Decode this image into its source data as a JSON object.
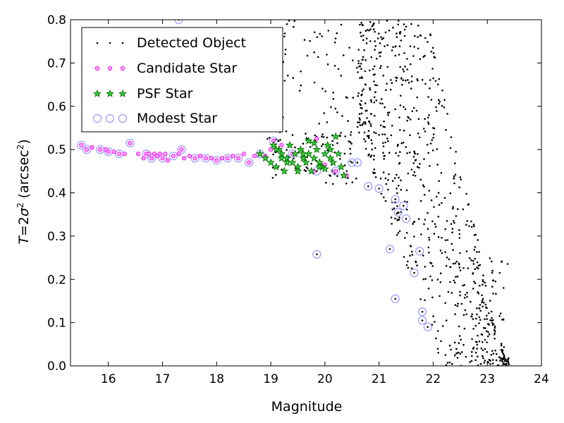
{
  "chart_data": {
    "type": "scatter",
    "title": "",
    "xlabel": "Magnitude",
    "ylabel_parts": {
      "var": "T",
      "eq": "=",
      "two": "2",
      "sigma": "σ",
      "sup2": "2",
      "unit_open": " (arcsec",
      "unit_sup": "2",
      "unit_close": ")"
    },
    "xlim": [
      15.3,
      24.0
    ],
    "ylim": [
      0.0,
      0.8
    ],
    "xticks": [
      "16",
      "17",
      "18",
      "19",
      "20",
      "21",
      "22",
      "23",
      "24"
    ],
    "yticks": [
      "0.0",
      "0.1",
      "0.2",
      "0.3",
      "0.4",
      "0.5",
      "0.6",
      "0.7",
      "0.8"
    ],
    "grid": false,
    "legend_position": "top-left",
    "colors": {
      "detected": "#000000",
      "candidate_fill": "#ffb0ff",
      "candidate_edge": "#ff00ff",
      "psf_fill": "#33cc33",
      "psf_edge": "#006600",
      "modest_edge": "#9999ff"
    },
    "series": [
      {
        "name": "Detected Object",
        "marker": "dot",
        "count": 900,
        "x_range": [
          18.8,
          23.6
        ],
        "y_range": [
          0.0,
          0.8
        ]
      },
      {
        "name": "Candidate Star",
        "marker": "circle-small",
        "x": [
          15.5,
          15.6,
          15.7,
          15.85,
          15.95,
          16.0,
          16.1,
          16.2,
          16.3,
          16.4,
          16.55,
          16.65,
          16.7,
          16.75,
          16.8,
          16.85,
          16.9,
          16.95,
          17.0,
          17.05,
          17.1,
          17.2,
          17.3,
          17.35,
          17.4,
          17.5,
          17.6,
          17.7,
          17.8,
          17.9,
          18.0,
          18.1,
          18.2,
          18.3,
          18.4,
          18.5,
          18.6,
          18.7,
          18.8,
          18.9,
          19.0,
          19.05,
          19.2,
          19.4,
          19.6,
          19.8,
          19.85,
          20.0,
          20.2,
          20.4
        ],
        "y": [
          0.51,
          0.5,
          0.505,
          0.5,
          0.5,
          0.495,
          0.495,
          0.49,
          0.49,
          0.515,
          0.49,
          0.48,
          0.49,
          0.49,
          0.48,
          0.49,
          0.485,
          0.49,
          0.48,
          0.49,
          0.475,
          0.485,
          0.49,
          0.5,
          0.48,
          0.485,
          0.48,
          0.485,
          0.48,
          0.48,
          0.475,
          0.48,
          0.48,
          0.485,
          0.48,
          0.49,
          0.47,
          0.485,
          0.49,
          0.485,
          0.5,
          0.52,
          0.51,
          0.49,
          0.48,
          0.45,
          0.525,
          0.465,
          0.45,
          0.44
        ]
      },
      {
        "name": "PSF Star",
        "marker": "star",
        "x": [
          18.8,
          18.9,
          19.0,
          19.05,
          19.1,
          19.15,
          19.2,
          19.25,
          19.3,
          19.35,
          19.4,
          19.45,
          19.5,
          19.55,
          19.6,
          19.65,
          19.7,
          19.75,
          19.8,
          19.85,
          19.9,
          19.95,
          20.0,
          20.05,
          20.1,
          20.15,
          20.2,
          20.25,
          20.3,
          20.35,
          19.1,
          19.3,
          19.5,
          19.7,
          19.9,
          20.1,
          19.2,
          19.6,
          20.0,
          19.8
        ],
        "y": [
          0.49,
          0.48,
          0.47,
          0.51,
          0.46,
          0.5,
          0.49,
          0.45,
          0.48,
          0.51,
          0.47,
          0.49,
          0.46,
          0.5,
          0.48,
          0.47,
          0.49,
          0.45,
          0.48,
          0.5,
          0.47,
          0.46,
          0.49,
          0.51,
          0.48,
          0.47,
          0.53,
          0.49,
          0.46,
          0.44,
          0.5,
          0.47,
          0.45,
          0.52,
          0.46,
          0.5,
          0.48,
          0.49,
          0.455,
          0.515
        ]
      },
      {
        "name": "Modest Star",
        "marker": "circle-open",
        "x": [
          15.5,
          15.6,
          15.85,
          16.0,
          16.2,
          16.4,
          16.7,
          16.8,
          17.0,
          17.2,
          17.35,
          17.6,
          17.8,
          18.0,
          18.2,
          18.4,
          18.6,
          18.8,
          19.05,
          19.4,
          19.85,
          20.2,
          20.5,
          20.6,
          20.8,
          21.0,
          21.2,
          21.3,
          21.35,
          21.45,
          21.5,
          21.3,
          21.65,
          21.75,
          21.8,
          21.9,
          21.8,
          19.85,
          17.3
        ],
        "y": [
          0.51,
          0.5,
          0.5,
          0.495,
          0.49,
          0.515,
          0.49,
          0.48,
          0.48,
          0.485,
          0.5,
          0.48,
          0.48,
          0.475,
          0.48,
          0.48,
          0.47,
          0.49,
          0.52,
          0.49,
          0.45,
          0.45,
          0.47,
          0.47,
          0.415,
          0.41,
          0.27,
          0.385,
          0.355,
          0.37,
          0.34,
          0.155,
          0.215,
          0.265,
          0.125,
          0.09,
          0.105,
          0.258,
          0.8
        ]
      }
    ]
  }
}
